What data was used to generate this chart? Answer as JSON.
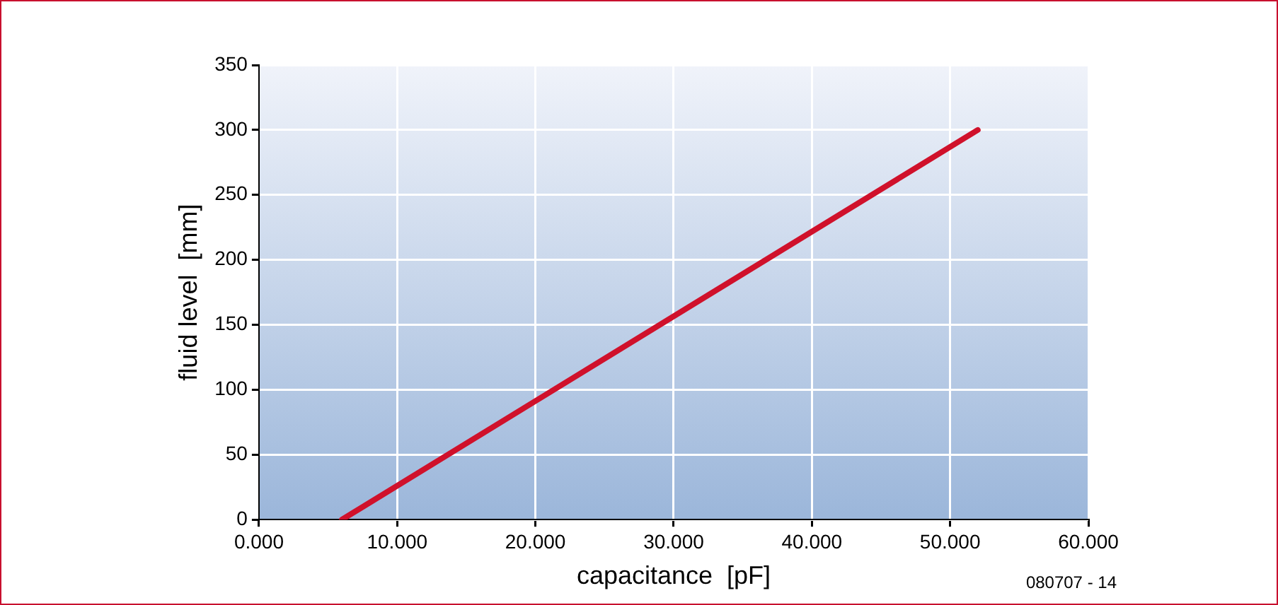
{
  "chart_data": {
    "type": "line",
    "xlabel": "capacitance  [pF]",
    "ylabel": "fluid level  [mm]",
    "x": [
      6,
      52
    ],
    "series": [
      {
        "color": "#d0112b",
        "values": [
          0,
          300
        ]
      }
    ],
    "xlim": [
      0,
      60
    ],
    "xticks": [
      {
        "value": 0,
        "label": "0.000"
      },
      {
        "value": 10,
        "label": "10.000"
      },
      {
        "value": 20,
        "label": "20.000"
      },
      {
        "value": 30,
        "label": "30.000"
      },
      {
        "value": 40,
        "label": "40.000"
      },
      {
        "value": 50,
        "label": "50.000"
      },
      {
        "value": 60,
        "label": "60.000"
      }
    ],
    "ylim": [
      0,
      350
    ],
    "yticks": [
      0,
      50,
      100,
      150,
      200,
      250,
      300,
      350
    ],
    "grid": true,
    "legend": false,
    "marker": "none",
    "line_style": "solid",
    "annotations": [
      "080707 - 14"
    ]
  }
}
